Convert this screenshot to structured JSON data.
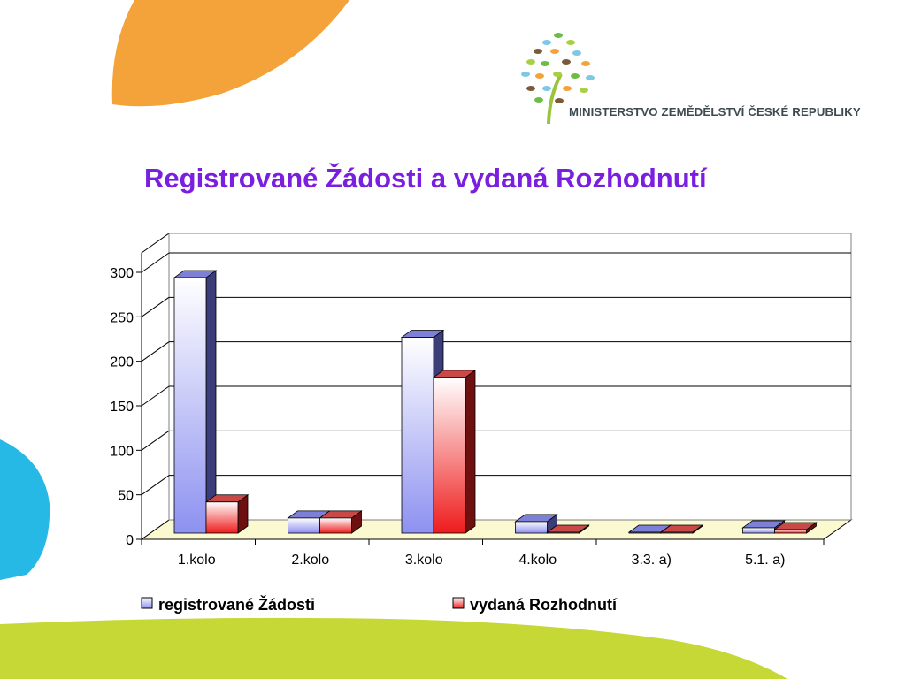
{
  "logo": {
    "text": "MINISTERSTVO ZEMĚDĚLSTVÍ ČESKÉ REPUBLIKY"
  },
  "colors": {
    "title": "#7a1fe0",
    "orange": "#f4a23a",
    "lime": "#c6d836",
    "cyan": "#27b9e6",
    "series1": "#8d91f0",
    "series2": "#ee1b1b",
    "floor": "#fbf9cf"
  },
  "chart_data": {
    "type": "bar",
    "title": "Registrované Žádosti a vydaná Rozhodnutí",
    "categories": [
      "1.kolo",
      "2.kolo",
      "3.kolo",
      "4.kolo",
      "3.3. a)",
      "5.1. a)"
    ],
    "series": [
      {
        "name": "registrované Žádosti",
        "values": [
          287,
          17,
          220,
          13,
          1,
          6
        ]
      },
      {
        "name": "vydaná Rozhodnutí",
        "values": [
          35,
          17,
          175,
          1,
          1,
          4
        ]
      }
    ],
    "yticks": [
      0,
      50,
      100,
      150,
      200,
      250,
      300
    ],
    "ylim": [
      0,
      300
    ],
    "grid": true,
    "style": "3d-clustered-column",
    "legend": "bottom"
  }
}
